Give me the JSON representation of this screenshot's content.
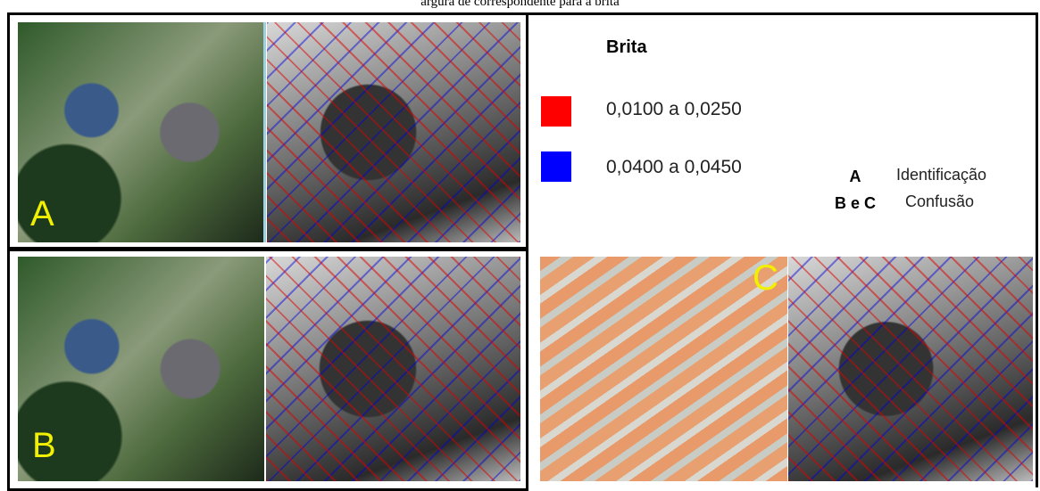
{
  "header": {
    "title": "argura de correspondente para a brita"
  },
  "panels": [
    {
      "label": "A"
    },
    {
      "label": "B"
    },
    {
      "label": "C"
    }
  ],
  "legend": {
    "title": "Brita",
    "items": [
      {
        "color": "#ff0000",
        "label": "0,0100 a 0,0250"
      },
      {
        "color": "#0000ff",
        "label": "0,0400 a 0,0450"
      }
    ],
    "key": [
      {
        "letter": "A",
        "meaning": "Identificação"
      },
      {
        "letter": "B e C",
        "meaning": "Confusão"
      }
    ]
  }
}
